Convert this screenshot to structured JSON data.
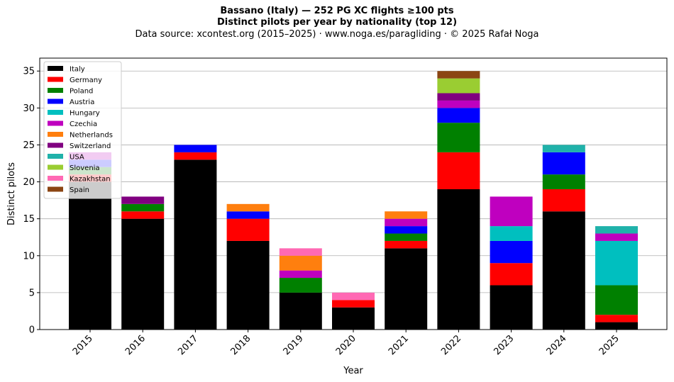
{
  "chart_data": {
    "type": "bar",
    "stacked": true,
    "title": "Bassano (Italy)  —  252 PG XC flights ≥100 pts",
    "subtitle": "Distinct pilots per year by nationality (top 12)",
    "source": "Data source: xcontest.org (2015–2025)  ·  www.noga.es/paragliding  ·  © 2025 Rafał Noga",
    "xlabel": "Year",
    "ylabel": "Distinct pilots",
    "ylim": [
      0,
      36.75
    ],
    "yticks": [
      0,
      5,
      10,
      15,
      20,
      25,
      30,
      35
    ],
    "grid": "horizontal",
    "legend_position": "top-left",
    "categories": [
      "2015",
      "2016",
      "2017",
      "2018",
      "2019",
      "2020",
      "2021",
      "2022",
      "2023",
      "2024",
      "2025"
    ],
    "series": [
      {
        "name": "Italy",
        "color": "#000000",
        "values": [
          20,
          15,
          23,
          12,
          5,
          3,
          11,
          19,
          6,
          16,
          1
        ]
      },
      {
        "name": "Germany",
        "color": "#ff0000",
        "values": [
          1,
          1,
          1,
          3,
          0,
          1,
          1,
          5,
          3,
          3,
          1
        ]
      },
      {
        "name": "Poland",
        "color": "#008000",
        "values": [
          1,
          1,
          0,
          0,
          2,
          0,
          1,
          4,
          0,
          2,
          4
        ]
      },
      {
        "name": "Austria",
        "color": "#0000ff",
        "values": [
          1,
          0,
          1,
          1,
          0,
          0,
          1,
          2,
          3,
          3,
          0
        ]
      },
      {
        "name": "Hungary",
        "color": "#00bfbf",
        "values": [
          0,
          0,
          0,
          0,
          0,
          0,
          0,
          0,
          2,
          0,
          6
        ]
      },
      {
        "name": "Czechia",
        "color": "#bf00bf",
        "values": [
          1,
          0,
          0,
          0,
          1,
          0,
          1,
          1,
          4,
          0,
          1
        ]
      },
      {
        "name": "Netherlands",
        "color": "#ff7f0e",
        "values": [
          0,
          0,
          0,
          1,
          2,
          0,
          1,
          0,
          0,
          0,
          0
        ]
      },
      {
        "name": "Switzerland",
        "color": "#800080",
        "values": [
          0,
          1,
          0,
          0,
          0,
          0,
          0,
          1,
          0,
          0,
          0
        ]
      },
      {
        "name": "USA",
        "color": "#20b2aa",
        "values": [
          0,
          0,
          0,
          0,
          0,
          0,
          0,
          0,
          0,
          1,
          1
        ]
      },
      {
        "name": "Slovenia",
        "color": "#9acd32",
        "values": [
          0,
          0,
          0,
          0,
          0,
          0,
          0,
          2,
          0,
          0,
          0
        ]
      },
      {
        "name": "Kazakhstan",
        "color": "#ff69b4",
        "values": [
          0,
          0,
          0,
          0,
          1,
          1,
          0,
          0,
          0,
          0,
          0
        ]
      },
      {
        "name": "Spain",
        "color": "#8b4513",
        "values": [
          0,
          0,
          0,
          0,
          0,
          0,
          0,
          1,
          0,
          0,
          0
        ]
      }
    ]
  }
}
